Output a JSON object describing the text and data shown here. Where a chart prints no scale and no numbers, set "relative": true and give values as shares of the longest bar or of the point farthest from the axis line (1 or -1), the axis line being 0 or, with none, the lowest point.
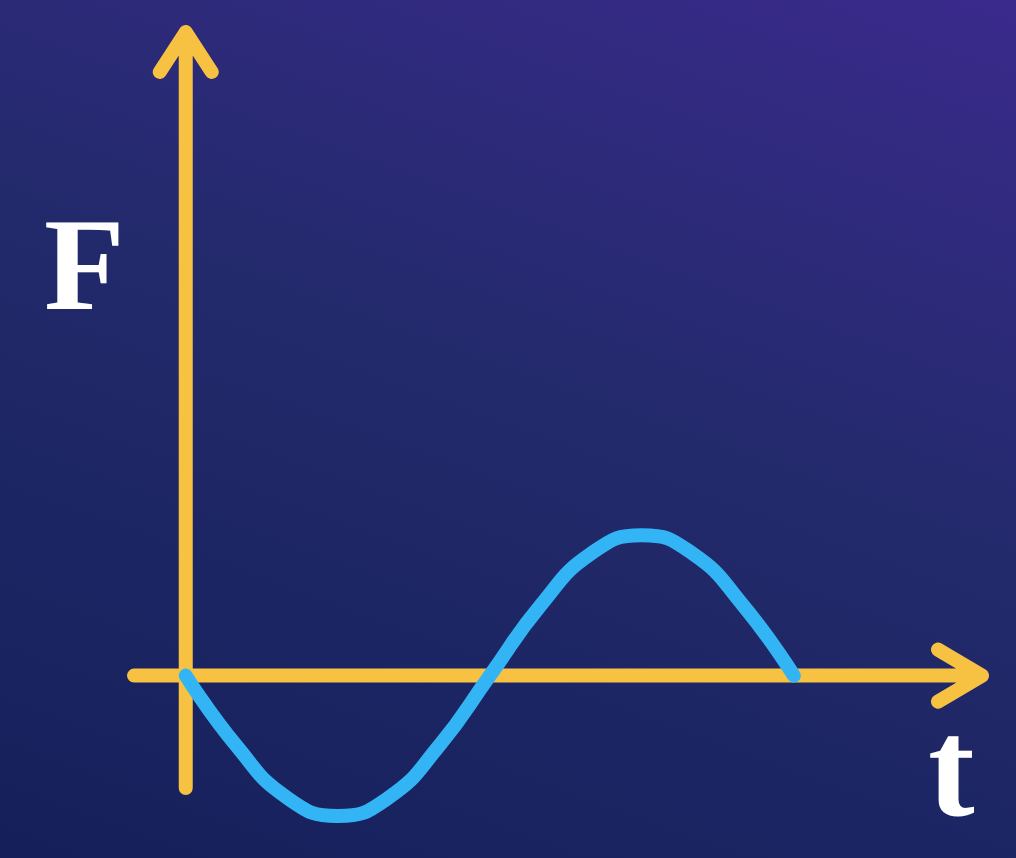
{
  "chart_data": {
    "type": "line",
    "relative": true,
    "xlabel": "t",
    "ylabel": "F",
    "categories": [
      null,
      null,
      null,
      null,
      null,
      null,
      null,
      null,
      null,
      null,
      null,
      null,
      null
    ],
    "series": [
      {
        "color": "#33b5f5",
        "values": [
          0,
          -0.5,
          -0.87,
          -1,
          -0.87,
          -0.5,
          0,
          0.5,
          0.87,
          1,
          0.87,
          0.5,
          0
        ]
      }
    ],
    "ref_lines": [
      {
        "axis": "y",
        "value": 0,
        "color": "#f7c242"
      }
    ],
    "marker": "none",
    "line_style": "solid",
    "grid": false,
    "tick_labels": false
  }
}
